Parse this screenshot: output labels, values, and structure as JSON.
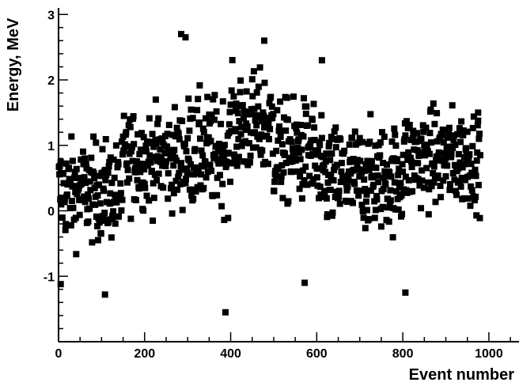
{
  "chart_data": {
    "type": "scatter",
    "title": "",
    "xlabel": "Event number",
    "ylabel": "Energy, MeV",
    "xlim": [
      0,
      1070
    ],
    "ylim": [
      -2,
      3.1
    ],
    "x_ticks": [
      0,
      200,
      400,
      600,
      800,
      1000
    ],
    "y_ticks": [
      -1,
      0,
      1,
      2,
      3
    ],
    "grid": false,
    "legend": "none",
    "marker": "square",
    "marker_color": "#000000",
    "n_points": 980,
    "notable_points": [
      {
        "x": 285,
        "y": 2.7
      },
      {
        "x": 295,
        "y": 2.65
      },
      {
        "x": 478,
        "y": 2.6
      },
      {
        "x": 388,
        "y": -1.55
      },
      {
        "x": 806,
        "y": -1.25
      },
      {
        "x": 108,
        "y": -1.28
      },
      {
        "x": 572,
        "y": -1.1
      },
      {
        "x": 612,
        "y": 2.3
      },
      {
        "x": 5,
        "y": -1.12
      },
      {
        "x": 975,
        "y": 1.5
      }
    ],
    "trend_segments": [
      {
        "x_from": 0,
        "x_to": 150,
        "y_center": 0.3,
        "y_spread": 0.75
      },
      {
        "x_from": 150,
        "x_to": 300,
        "y_center": 0.8,
        "y_spread": 0.75
      },
      {
        "x_from": 300,
        "x_to": 400,
        "y_center": 0.9,
        "y_spread": 0.85
      },
      {
        "x_from": 400,
        "x_to": 500,
        "y_center": 1.3,
        "y_spread": 0.8
      },
      {
        "x_from": 500,
        "x_to": 600,
        "y_center": 0.9,
        "y_spread": 0.8
      },
      {
        "x_from": 600,
        "x_to": 800,
        "y_center": 0.5,
        "y_spread": 0.8
      },
      {
        "x_from": 800,
        "x_to": 980,
        "y_center": 0.8,
        "y_spread": 0.75
      }
    ],
    "colors": {
      "background": "#ffffff",
      "axis": "#000000",
      "marker": "#000000"
    }
  }
}
